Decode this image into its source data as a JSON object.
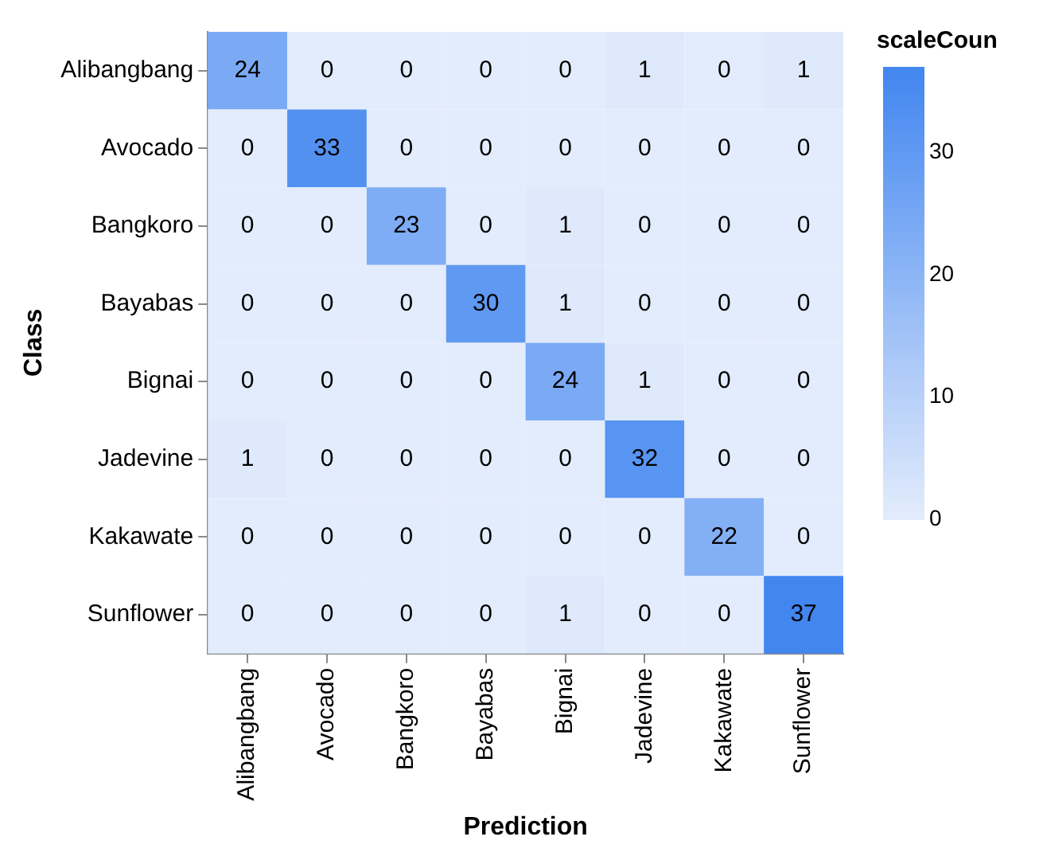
{
  "chart_data": {
    "type": "heatmap",
    "xlabel": "Prediction",
    "ylabel": "Class",
    "legend_title": "scaleCoun",
    "categories": [
      "Alibangbang",
      "Avocado",
      "Bangkoro",
      "Bayabas",
      "Bignai",
      "Jadevine",
      "Kakawate",
      "Sunflower"
    ],
    "y_categories": [
      "Alibangbang",
      "Avocado",
      "Bangkoro",
      "Bayabas",
      "Bignai",
      "Jadevine",
      "Kakawate",
      "Sunflower"
    ],
    "cells": [
      [
        24,
        0,
        0,
        0,
        0,
        1,
        0,
        1
      ],
      [
        0,
        33,
        0,
        0,
        0,
        0,
        0,
        0
      ],
      [
        0,
        0,
        23,
        0,
        1,
        0,
        0,
        0
      ],
      [
        0,
        0,
        0,
        30,
        1,
        0,
        0,
        0
      ],
      [
        0,
        0,
        0,
        0,
        24,
        1,
        0,
        0
      ],
      [
        1,
        0,
        0,
        0,
        0,
        32,
        0,
        0
      ],
      [
        0,
        0,
        0,
        0,
        0,
        0,
        22,
        0
      ],
      [
        0,
        0,
        0,
        0,
        1,
        0,
        0,
        37
      ]
    ],
    "clim": [
      0,
      37
    ],
    "cticks": [
      0,
      10,
      20,
      30
    ],
    "data_labels": true,
    "grid": false
  }
}
